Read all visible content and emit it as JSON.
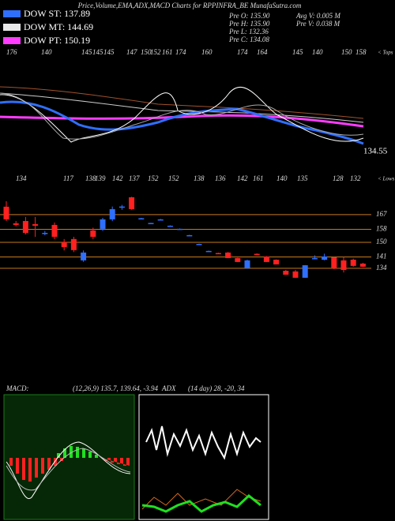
{
  "header": {
    "title": "Price,Volume,EMA,ADX,MACD Charts for RPPINFRA_BE MunafaSutra.com"
  },
  "legend": [
    {
      "label": "DOW ST: 137.89",
      "color": "#2f6fff"
    },
    {
      "label": "DOW MT: 144.69",
      "color": "#e8e8e8"
    },
    {
      "label": "DOW PT: 150.19",
      "color": "#ff3cff"
    }
  ],
  "info": [
    "Pre  O: 135.90",
    "Pre  H: 135.90",
    "Pre  L: 132.36",
    "Pre  C: 134.08",
    "Avg V: 0.005 M",
    "Pre  V: 0.038  M"
  ],
  "tops": {
    "values": [
      176,
      140,
      145,
      145,
      145,
      147,
      150,
      152,
      161,
      174,
      160,
      174,
      164,
      145,
      140,
      150,
      158
    ],
    "label": "< Tops"
  },
  "lows": {
    "values": [
      134,
      117,
      138,
      139,
      142,
      137,
      152,
      152,
      138,
      136,
      142,
      161,
      140,
      135,
      128,
      132
    ],
    "label": "< Lows"
  },
  "last_price": 134.55,
  "candles": {
    "ylim": [
      119.4,
      182.5
    ],
    "yticks": [
      167,
      158,
      150,
      141,
      134
    ],
    "items": [
      {
        "o": 171.9,
        "h": 175.3,
        "l": 163.1,
        "c": 164.1
      },
      {
        "o": 161.7,
        "h": 163.1,
        "l": 159.8,
        "c": 160.7
      },
      {
        "o": 163.1,
        "h": 165.6,
        "l": 154.9,
        "c": 155.8
      },
      {
        "o": 161.2,
        "h": 165.6,
        "l": 153.4,
        "c": 160.2
      },
      {
        "o": 155.4,
        "h": 157,
        "l": 154.4,
        "c": 155.8
      },
      {
        "o": 160.7,
        "h": 162.2,
        "l": 152,
        "c": 153.4
      },
      {
        "o": 150,
        "h": 152,
        "l": 145,
        "c": 147.1
      },
      {
        "o": 152,
        "h": 153.4,
        "l": 144,
        "c": 145.2
      },
      {
        "o": 138.9,
        "h": 145,
        "l": 138,
        "c": 143.7
      },
      {
        "o": 157.3,
        "h": 159,
        "l": 152,
        "c": 153.4
      },
      {
        "o": 158.3,
        "h": 165,
        "l": 157,
        "c": 164.1
      },
      {
        "o": 164.1,
        "h": 172,
        "l": 163,
        "c": 170.4
      },
      {
        "o": 171.4,
        "h": 173,
        "l": 170,
        "c": 172
      },
      {
        "o": 177.7,
        "h": 178,
        "l": 170,
        "c": 170.4
      },
      {
        "o": 164.6,
        "h": 165,
        "l": 164.4,
        "c": 164.8
      },
      {
        "o": 161.7,
        "h": 162,
        "l": 161.5,
        "c": 161.9
      },
      {
        "o": 163.9,
        "h": 164.4,
        "l": 163.6,
        "c": 164.1
      },
      {
        "o": 160,
        "h": 160.4,
        "l": 159.8,
        "c": 160.2
      },
      {
        "o": 158.1,
        "h": 158.5,
        "l": 157.9,
        "c": 158.3
      },
      {
        "o": 154.2,
        "h": 154.6,
        "l": 154,
        "c": 154.4
      },
      {
        "o": 148.8,
        "h": 149.2,
        "l": 148.6,
        "c": 149
      },
      {
        "o": 144.5,
        "h": 144.9,
        "l": 144.3,
        "c": 144.7
      },
      {
        "o": 143.4,
        "h": 143.6,
        "l": 142.9,
        "c": 143.2
      },
      {
        "o": 143.7,
        "h": 144,
        "l": 140.3,
        "c": 140.3
      },
      {
        "o": 140.3,
        "h": 140.5,
        "l": 137.9,
        "c": 137.9
      },
      {
        "o": 134,
        "h": 139.3,
        "l": 134,
        "c": 138.9
      },
      {
        "o": 142.9,
        "h": 143.2,
        "l": 142.5,
        "c": 142.7
      },
      {
        "o": 141.3,
        "h": 141.5,
        "l": 137.9,
        "c": 137.9
      },
      {
        "o": 139.3,
        "h": 139.5,
        "l": 136.4,
        "c": 136.4
      },
      {
        "o": 132.5,
        "h": 133,
        "l": 130.1,
        "c": 130.1
      },
      {
        "o": 132.1,
        "h": 133,
        "l": 128.2,
        "c": 128.2
      },
      {
        "o": 128.2,
        "h": 136,
        "l": 128.2,
        "c": 135.9
      },
      {
        "o": 139.8,
        "h": 142,
        "l": 139.5,
        "c": 140.3
      },
      {
        "o": 139.3,
        "h": 143,
        "l": 138.9,
        "c": 141.3
      },
      {
        "o": 140.8,
        "h": 141,
        "l": 133.5,
        "c": 134
      },
      {
        "o": 138.9,
        "h": 141,
        "l": 131.5,
        "c": 133
      },
      {
        "o": 139.3,
        "h": 140,
        "l": 135,
        "c": 135.5
      },
      {
        "o": 136.9,
        "h": 137.4,
        "l": 134.8,
        "c": 135
      }
    ]
  },
  "macd": {
    "label": "MACD:",
    "params": "(12,26,9) 135.7, 139.64, -3.94"
  },
  "adx": {
    "label": "ADX",
    "params": "(14 day) 28, -20, 34"
  }
}
